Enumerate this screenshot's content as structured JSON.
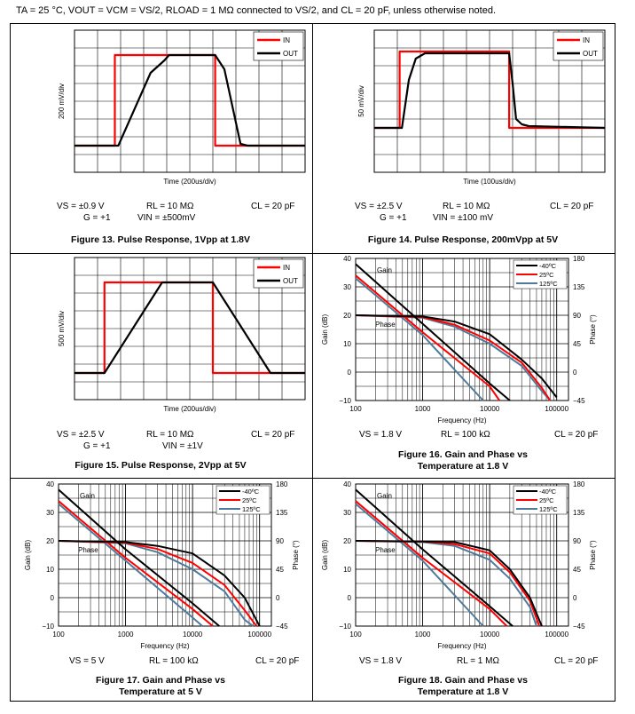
{
  "header": {
    "text": "TA = 25 °C, VOUT = VCM = VS/2, RLOAD = 1 MΩ connected to VS/2, and CL = 20 pF, unless otherwise noted."
  },
  "colors": {
    "in": "#ff0000",
    "out": "#000000",
    "t_m40": "#000000",
    "t_25": "#ff0000",
    "t_125": "#4f7a99"
  },
  "figures": [
    {
      "id": "fig13",
      "caption": "Figure 13. Pulse Response, 1Vpp at 1.8V",
      "c1a": "VS = ±0.9 V",
      "c1b": "G = +1",
      "c2a": "RL = 10 MΩ",
      "c2b": "VIN = ±500mV",
      "c3": "CL = 20 pF"
    },
    {
      "id": "fig14",
      "caption": "Figure 14. Pulse Response, 200mVpp at 5V",
      "c1a": "VS = ±2.5 V",
      "c1b": "G = +1",
      "c2a": "RL = 10 MΩ",
      "c2b": "VIN = ±100 mV",
      "c3": "CL = 20 pF"
    },
    {
      "id": "fig15",
      "caption": "Figure 15. Pulse Response, 2Vpp at 5V",
      "c1a": "VS = ±2.5 V",
      "c1b": "G = +1",
      "c2a": "RL = 10 MΩ",
      "c2b": "VIN = ±1V",
      "c3": "CL = 20 pF"
    },
    {
      "id": "fig16",
      "caption1": "Figure 16. Gain and Phase vs",
      "caption2": "Temperature at 1.8 V",
      "c1a": "VS = 1.8 V",
      "c2a": "RL = 100 kΩ",
      "c3": "CL = 20 pF"
    },
    {
      "id": "fig17",
      "caption1": "Figure 17. Gain and Phase vs",
      "caption2": "Temperature at 5 V",
      "c1a": "VS = 5 V",
      "c2a": "RL = 100 kΩ",
      "c3": "CL = 20 pF"
    },
    {
      "id": "fig18",
      "caption1": "Figure 18. Gain and Phase vs",
      "caption2": "Temperature at 1.8 V",
      "c1a": "VS = 1.8 V",
      "c2a": "RL = 1 MΩ",
      "c3": "CL = 20 pF"
    }
  ],
  "chart_data": [
    {
      "type": "line",
      "id": "fig13",
      "xlabel": "Time (200us/div)",
      "ylabel": "200 mV/div",
      "legend": [
        "IN",
        "OUT"
      ],
      "xdivs": 10,
      "ydivs": 8,
      "series": [
        {
          "name": "IN",
          "points": [
            [
              0,
              1.5
            ],
            [
              1.75,
              1.5
            ],
            [
              1.75,
              6.6
            ],
            [
              6.1,
              6.6
            ],
            [
              6.1,
              1.5
            ],
            [
              10,
              1.5
            ]
          ]
        },
        {
          "name": "OUT",
          "points": [
            [
              0,
              1.5
            ],
            [
              1.9,
              1.5
            ],
            [
              3.3,
              5.6
            ],
            [
              3.9,
              6.3
            ],
            [
              4.1,
              6.6
            ],
            [
              6.1,
              6.6
            ],
            [
              6.5,
              5.8
            ],
            [
              7.2,
              1.6
            ],
            [
              7.5,
              1.5
            ],
            [
              10,
              1.5
            ]
          ]
        }
      ]
    },
    {
      "type": "line",
      "id": "fig14",
      "xlabel": "Time (100us/div)",
      "ylabel": "50 mV/div",
      "legend": [
        "IN",
        "OUT"
      ],
      "xdivs": 10,
      "ydivs": 8,
      "series": [
        {
          "name": "IN",
          "points": [
            [
              0,
              2.5
            ],
            [
              1.1,
              2.5
            ],
            [
              1.1,
              6.8
            ],
            [
              5.85,
              6.8
            ],
            [
              5.85,
              2.5
            ],
            [
              10,
              2.5
            ]
          ]
        },
        {
          "name": "OUT",
          "points": [
            [
              0,
              2.5
            ],
            [
              1.2,
              2.5
            ],
            [
              1.5,
              5.2
            ],
            [
              1.8,
              6.4
            ],
            [
              2.2,
              6.7
            ],
            [
              5.85,
              6.7
            ],
            [
              6.0,
              5.0
            ],
            [
              6.15,
              3.0
            ],
            [
              6.4,
              2.7
            ],
            [
              6.7,
              2.6
            ],
            [
              10,
              2.5
            ]
          ]
        }
      ]
    },
    {
      "type": "line",
      "id": "fig15",
      "xlabel": "Time (200us/div)",
      "ylabel": "500 mV/div",
      "legend": [
        "IN",
        "OUT"
      ],
      "xdivs": 10,
      "ydivs": 8,
      "series": [
        {
          "name": "IN",
          "points": [
            [
              0,
              1.5
            ],
            [
              1.3,
              1.5
            ],
            [
              1.3,
              6.6
            ],
            [
              6.0,
              6.6
            ],
            [
              6.0,
              1.5
            ],
            [
              10,
              1.5
            ]
          ]
        },
        {
          "name": "OUT",
          "points": [
            [
              0,
              1.5
            ],
            [
              1.3,
              1.5
            ],
            [
              3.8,
              6.6
            ],
            [
              6.0,
              6.6
            ],
            [
              8.5,
              1.5
            ],
            [
              10,
              1.5
            ]
          ]
        }
      ]
    },
    {
      "type": "line",
      "id": "fig16",
      "xlabel": "Frequency (Hz)",
      "ylabel": "Gain (dB)",
      "y2label": "Phase (°)",
      "xticks": [
        "100",
        "1000",
        "10000",
        "100000"
      ],
      "yticks": [
        "40",
        "30",
        "20",
        "10",
        "0",
        "−10"
      ],
      "y2ticks": [
        "180",
        "135",
        "90",
        "45",
        "0",
        "−45"
      ],
      "xlim": [
        100,
        150000
      ],
      "ylim": [
        -10,
        40
      ],
      "y2lim": [
        -45,
        180
      ],
      "legend": [
        "-40ºC",
        "25ºC",
        "125ºC"
      ],
      "annotations": [
        "Gain",
        "Phase"
      ],
      "series": [
        {
          "name": "-40ºC",
          "gain_db": [
            [
              100,
              38
            ],
            [
              1000,
              17
            ],
            [
              10000,
              -4
            ],
            [
              20000,
              -10
            ]
          ],
          "phase_deg": [
            [
              100,
              90
            ],
            [
              1000,
              88
            ],
            [
              3000,
              80
            ],
            [
              10000,
              60
            ],
            [
              30000,
              20
            ],
            [
              60000,
              -10
            ],
            [
              100000,
              -40
            ]
          ]
        },
        {
          "name": "25ºC",
          "gain_db": [
            [
              100,
              34
            ],
            [
              1000,
              14
            ],
            [
              10000,
              -5
            ],
            [
              14000,
              -10
            ]
          ],
          "phase_deg": [
            [
              100,
              90
            ],
            [
              1000,
              87
            ],
            [
              3000,
              75
            ],
            [
              10000,
              50
            ],
            [
              30000,
              15
            ],
            [
              60000,
              -25
            ],
            [
              80000,
              -45
            ]
          ]
        },
        {
          "name": "125ºC",
          "gain_db": [
            [
              100,
              33
            ],
            [
              1000,
              13
            ],
            [
              8000,
              -10
            ]
          ],
          "phase_deg": [
            [
              100,
              90
            ],
            [
              1000,
              86
            ],
            [
              3000,
              72
            ],
            [
              10000,
              45
            ],
            [
              30000,
              10
            ],
            [
              60000,
              -30
            ],
            [
              80000,
              -45
            ]
          ]
        }
      ]
    },
    {
      "type": "line",
      "id": "fig17",
      "xlabel": "Frequency (Hz)",
      "ylabel": "Gain (dB)",
      "y2label": "Phase (°)",
      "xticks": [
        "100",
        "1000",
        "10000",
        "100000"
      ],
      "yticks": [
        "40",
        "30",
        "20",
        "10",
        "0",
        "−10"
      ],
      "y2ticks": [
        "180",
        "135",
        "90",
        "45",
        "0",
        "−45"
      ],
      "xlim": [
        100,
        150000
      ],
      "ylim": [
        -10,
        40
      ],
      "y2lim": [
        -45,
        180
      ],
      "legend": [
        "-40ºC",
        "25ºC",
        "125ºC"
      ],
      "annotations": [
        "Gain",
        "Phase"
      ],
      "series": [
        {
          "name": "-40ºC",
          "gain_db": [
            [
              100,
              38
            ],
            [
              1000,
              17
            ],
            [
              10000,
              -2
            ],
            [
              25000,
              -10
            ]
          ],
          "phase_deg": [
            [
              100,
              90
            ],
            [
              1000,
              88
            ],
            [
              3000,
              82
            ],
            [
              10000,
              70
            ],
            [
              30000,
              35
            ],
            [
              60000,
              0
            ],
            [
              100000,
              -45
            ]
          ]
        },
        {
          "name": "25ºC",
          "gain_db": [
            [
              100,
              34
            ],
            [
              1000,
              14
            ],
            [
              10000,
              -4
            ],
            [
              20000,
              -10
            ]
          ],
          "phase_deg": [
            [
              100,
              90
            ],
            [
              1000,
              87
            ],
            [
              3000,
              77
            ],
            [
              10000,
              55
            ],
            [
              30000,
              20
            ],
            [
              60000,
              -20
            ],
            [
              90000,
              -45
            ]
          ]
        },
        {
          "name": "125ºC",
          "gain_db": [
            [
              100,
              33
            ],
            [
              1000,
              13
            ],
            [
              10000,
              -7
            ],
            [
              14000,
              -10
            ]
          ],
          "phase_deg": [
            [
              100,
              90
            ],
            [
              1000,
              86
            ],
            [
              3000,
              72
            ],
            [
              10000,
              45
            ],
            [
              30000,
              10
            ],
            [
              60000,
              -35
            ],
            [
              80000,
              -45
            ]
          ]
        }
      ]
    },
    {
      "type": "line",
      "id": "fig18",
      "xlabel": "Frequency (Hz)",
      "ylabel": "Gain (dB)",
      "y2label": "Phase (°)",
      "xticks": [
        "100",
        "1000",
        "10000",
        "100000"
      ],
      "yticks": [
        "40",
        "30",
        "20",
        "10",
        "0",
        "−10"
      ],
      "y2ticks": [
        "180",
        "135",
        "90",
        "45",
        "0",
        "−45"
      ],
      "xlim": [
        100,
        150000
      ],
      "ylim": [
        -10,
        40
      ],
      "y2lim": [
        -45,
        180
      ],
      "legend": [
        "-40ºC",
        "25ºC",
        "125ºC"
      ],
      "annotations": [
        "Gain",
        "Phase"
      ],
      "series": [
        {
          "name": "-40ºC",
          "gain_db": [
            [
              100,
              38
            ],
            [
              1000,
              17
            ],
            [
              10000,
              -3
            ],
            [
              22000,
              -10
            ]
          ],
          "phase_deg": [
            [
              100,
              90
            ],
            [
              1000,
              89
            ],
            [
              3000,
              88
            ],
            [
              10000,
              75
            ],
            [
              20000,
              45
            ],
            [
              40000,
              0
            ],
            [
              60000,
              -45
            ]
          ]
        },
        {
          "name": "25ºC",
          "gain_db": [
            [
              100,
              34
            ],
            [
              1000,
              14
            ],
            [
              10000,
              -4
            ],
            [
              18000,
              -10
            ]
          ],
          "phase_deg": [
            [
              100,
              90
            ],
            [
              1000,
              89
            ],
            [
              3000,
              85
            ],
            [
              10000,
              70
            ],
            [
              20000,
              40
            ],
            [
              40000,
              -5
            ],
            [
              55000,
              -45
            ]
          ]
        },
        {
          "name": "125ºC",
          "gain_db": [
            [
              100,
              33
            ],
            [
              1000,
              13
            ],
            [
              8000,
              -10
            ]
          ],
          "phase_deg": [
            [
              100,
              90
            ],
            [
              1000,
              88
            ],
            [
              3000,
              82
            ],
            [
              10000,
              60
            ],
            [
              20000,
              30
            ],
            [
              40000,
              -15
            ],
            [
              50000,
              -45
            ]
          ]
        }
      ]
    }
  ]
}
